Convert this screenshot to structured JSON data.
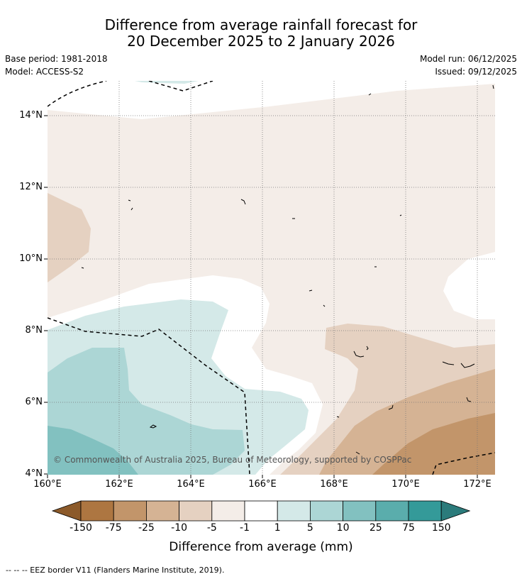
{
  "title": {
    "line1": "Difference from average rainfall forecast for",
    "line2": "20 December 2025 to 2 January 2026"
  },
  "meta": {
    "base_period": "Base period: 1981-2018",
    "model": "Model: ACCESS-S2",
    "model_run": "Model run: 06/12/2025",
    "issued": "Issued: 09/12/2025"
  },
  "map": {
    "lon_range": [
      160,
      172.5
    ],
    "lat_range": [
      4,
      15
    ],
    "lon_ticks": [
      "160°E",
      "162°E",
      "164°E",
      "166°E",
      "168°E",
      "170°E",
      "172°E"
    ],
    "lat_ticks": [
      "4°N",
      "6°N",
      "8°N",
      "10°N",
      "12°N",
      "14°N"
    ],
    "copyright": "© Commonwealth of Australia 2025, Bureau of Meteorology, supported by COSPPac"
  },
  "colorbar": {
    "labels": [
      "-150",
      "-75",
      "-25",
      "-10",
      "-5",
      "-1",
      "1",
      "5",
      "10",
      "25",
      "75",
      "150"
    ],
    "colors": [
      "#8c5a2a",
      "#ad7641",
      "#c2956a",
      "#d5b394",
      "#e5d1c1",
      "#f4ede8",
      "#ffffff",
      "#d4e9e8",
      "#acd6d5",
      "#82c1c0",
      "#5aadac",
      "#349a99",
      "#2b7b7b"
    ],
    "title": "Difference from average (mm)"
  },
  "footer": "--  --  -- EEZ border V11 (Flanders Marine Institute, 2019)."
}
